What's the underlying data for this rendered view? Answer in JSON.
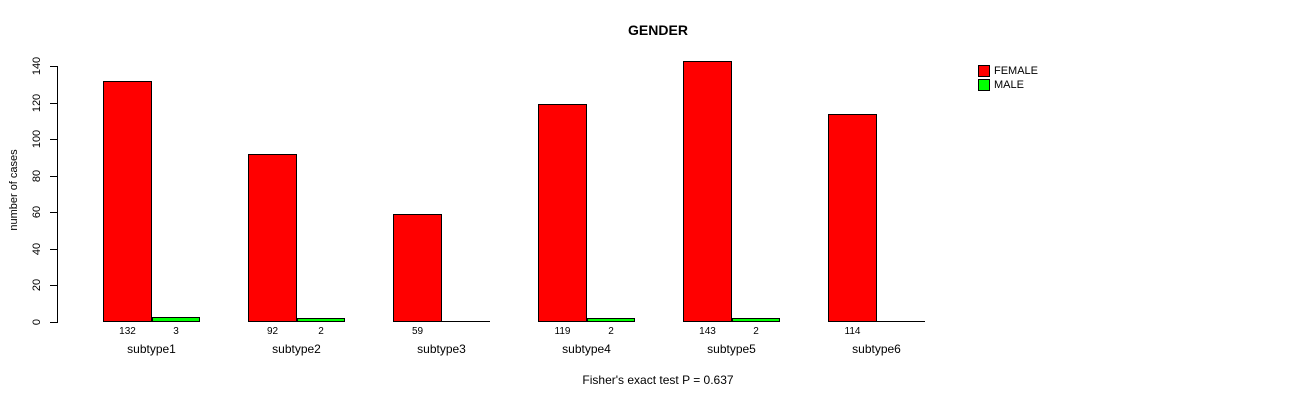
{
  "title": "GENDER",
  "footer": "Fisher's exact test P = 0.637",
  "legend": {
    "items": [
      {
        "label": "FEMALE",
        "color": "#ff0000"
      },
      {
        "label": "MALE",
        "color": "#00ff00"
      }
    ]
  },
  "chart_data": {
    "type": "bar",
    "title": "GENDER",
    "xlabel": "",
    "ylabel": "number of cases",
    "categories": [
      "subtype1",
      "subtype2",
      "subtype3",
      "subtype4",
      "subtype5",
      "subtype6"
    ],
    "series": [
      {
        "name": "FEMALE",
        "color": "#ff0000",
        "values": [
          132,
          92,
          59,
          119,
          143,
          114
        ]
      },
      {
        "name": "MALE",
        "color": "#00ff00",
        "values": [
          3,
          2,
          0,
          2,
          2,
          0
        ]
      }
    ],
    "bar_count_labels": {
      "FEMALE": [
        "132",
        "92",
        "59",
        "119",
        "143",
        "114"
      ],
      "MALE": [
        "3",
        "2",
        "",
        "2",
        "2",
        ""
      ]
    },
    "yticks": [
      0,
      20,
      40,
      60,
      80,
      100,
      120,
      140
    ],
    "ylim": [
      0,
      140
    ],
    "grid": false,
    "legend_position": "top-right",
    "annotation": "Fisher's exact test P = 0.637"
  }
}
